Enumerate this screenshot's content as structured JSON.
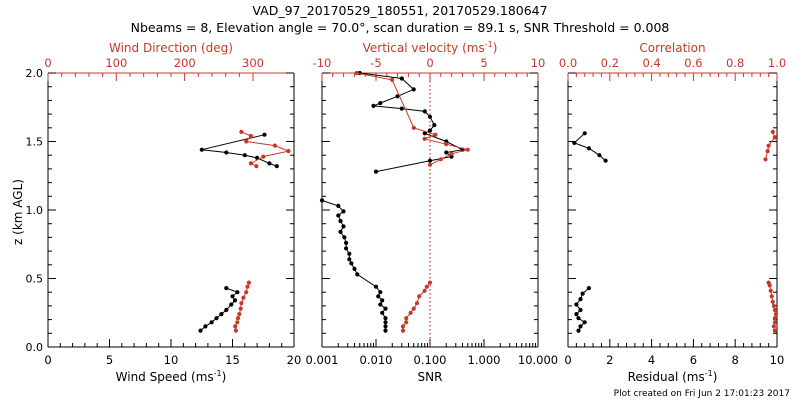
{
  "header": {
    "title": "VAD_97_20170529_180551, 20170529.180647",
    "subtitle": "Nbeams = 8, Elevation angle = 70.0°, scan duration = 89.1 s, SNR Threshold = 0.008"
  },
  "footer": {
    "note": "Plot created on Fri Jun  2 17:01:23 2017"
  },
  "colors": {
    "primary": "#000000",
    "secondary": "#c8382a"
  },
  "chart_data": [
    {
      "type": "line",
      "panel": "wind",
      "ylabel": "z (km AGL)",
      "ylim": [
        0,
        2
      ],
      "yticks": [
        "0.0",
        "0.5",
        "1.0",
        "1.5",
        "2.0"
      ],
      "bottom_axis": {
        "label": "Wind Speed (ms",
        "sup": "-1",
        "tail": ")",
        "lim": [
          0,
          20
        ],
        "ticks": [
          "0",
          "5",
          "10",
          "15",
          "20"
        ],
        "scale": "linear"
      },
      "top_axis": {
        "label": "Wind Direction (deg)",
        "lim": [
          0,
          360
        ],
        "ticks": [
          "0",
          "100",
          "200",
          "300"
        ],
        "tick_values": [
          0,
          100,
          200,
          300
        ],
        "scale": "linear"
      },
      "series": [
        {
          "axis": "bottom",
          "color": "#000000",
          "segments": [
            [
              [
                17.6,
                1.55
              ],
              [
                12.5,
                1.44
              ],
              [
                14.5,
                1.42
              ],
              [
                16.0,
                1.4
              ],
              [
                17.0,
                1.38
              ],
              [
                18.0,
                1.34
              ],
              [
                18.6,
                1.32
              ]
            ],
            [
              [
                12.4,
                0.12
              ],
              [
                12.8,
                0.15
              ],
              [
                13.3,
                0.18
              ],
              [
                13.7,
                0.21
              ],
              [
                14.1,
                0.24
              ],
              [
                14.5,
                0.27
              ],
              [
                14.9,
                0.31
              ],
              [
                15.2,
                0.34
              ],
              [
                15.0,
                0.37
              ],
              [
                15.4,
                0.4
              ],
              [
                14.5,
                0.43
              ]
            ]
          ]
        },
        {
          "axis": "top",
          "color": "#c8382a",
          "segments": [
            [
              [
                283,
                1.57
              ],
              [
                297,
                1.54
              ],
              [
                290,
                1.5
              ],
              [
                332,
                1.47
              ],
              [
                352,
                1.43
              ],
              [
                315,
                1.39
              ],
              [
                297,
                1.34
              ],
              [
                305,
                1.32
              ]
            ],
            [
              [
                275,
                0.12
              ],
              [
                274,
                0.15
              ],
              [
                277,
                0.18
              ],
              [
                278,
                0.21
              ],
              [
                280,
                0.24
              ],
              [
                282,
                0.28
              ],
              [
                283,
                0.32
              ],
              [
                286,
                0.36
              ],
              [
                290,
                0.4
              ],
              [
                292,
                0.44
              ],
              [
                294,
                0.47
              ]
            ]
          ]
        }
      ]
    },
    {
      "type": "line",
      "panel": "snr",
      "ylim": [
        0,
        2
      ],
      "bottom_axis": {
        "label": "SNR",
        "lim": [
          0.001,
          10
        ],
        "ticks": [
          "0.001",
          "0.010",
          "0.100",
          "1.000",
          "10.000"
        ],
        "tick_values": [
          0.001,
          0.01,
          0.1,
          1,
          10
        ],
        "scale": "log"
      },
      "top_axis": {
        "label": "Vertical velocity (ms",
        "sup": "-1",
        "tail": ")",
        "lim": [
          -10,
          10
        ],
        "ticks": [
          "-10",
          "-5",
          "0",
          "5",
          "10"
        ],
        "tick_values": [
          -10,
          -5,
          0,
          5,
          10
        ],
        "scale": "linear",
        "zero_line": true
      },
      "series": [
        {
          "axis": "bottom",
          "color": "#000000",
          "segments": [
            [
              [
                0.005,
                2.0
              ],
              [
                0.03,
                1.96
              ],
              [
                0.05,
                1.88
              ],
              [
                0.025,
                1.83
              ],
              [
                0.012,
                1.78
              ],
              [
                0.009,
                1.76
              ],
              [
                0.03,
                1.74
              ],
              [
                0.08,
                1.72
              ],
              [
                0.1,
                1.68
              ],
              [
                0.12,
                1.62
              ],
              [
                0.1,
                1.58
              ],
              [
                0.08,
                1.56
              ],
              [
                0.2,
                1.5
              ],
              [
                0.4,
                1.44
              ],
              [
                0.2,
                1.42
              ],
              [
                0.25,
                1.39
              ],
              [
                0.1,
                1.36
              ],
              [
                0.01,
                1.28
              ]
            ],
            [
              [
                0.001,
                1.07
              ],
              [
                0.002,
                1.03
              ],
              [
                0.0025,
                0.99
              ],
              [
                0.002,
                0.96
              ],
              [
                0.0022,
                0.92
              ],
              [
                0.0025,
                0.88
              ],
              [
                0.0022,
                0.84
              ],
              [
                0.0026,
                0.8
              ],
              [
                0.0028,
                0.76
              ],
              [
                0.0028,
                0.72
              ],
              [
                0.0032,
                0.68
              ],
              [
                0.0032,
                0.64
              ],
              [
                0.0035,
                0.61
              ],
              [
                0.004,
                0.57
              ],
              [
                0.0045,
                0.53
              ],
              [
                0.01,
                0.44
              ],
              [
                0.012,
                0.4
              ],
              [
                0.011,
                0.37
              ],
              [
                0.013,
                0.34
              ],
              [
                0.012,
                0.31
              ],
              [
                0.015,
                0.28
              ],
              [
                0.013,
                0.25
              ],
              [
                0.015,
                0.21
              ],
              [
                0.015,
                0.18
              ],
              [
                0.015,
                0.15
              ],
              [
                0.015,
                0.12
              ]
            ]
          ]
        },
        {
          "axis": "top",
          "color": "#c8382a",
          "segments": [
            [
              [
                -6.8,
                2.0
              ],
              [
                -3.5,
                1.95
              ],
              [
                -1.5,
                1.6
              ],
              [
                0.5,
                1.55
              ],
              [
                -0.5,
                1.52
              ],
              [
                1.5,
                1.48
              ],
              [
                3.5,
                1.44
              ],
              [
                2.0,
                1.41
              ],
              [
                1.0,
                1.37
              ],
              [
                0.0,
                1.33
              ]
            ],
            [
              [
                -2.5,
                0.12
              ],
              [
                -2.5,
                0.15
              ],
              [
                -2.2,
                0.18
              ],
              [
                -2.2,
                0.21
              ],
              [
                -1.8,
                0.25
              ],
              [
                -1.5,
                0.28
              ],
              [
                -1.2,
                0.32
              ],
              [
                -1.0,
                0.37
              ],
              [
                -0.5,
                0.41
              ],
              [
                -0.3,
                0.44
              ],
              [
                0.0,
                0.47
              ]
            ]
          ]
        }
      ]
    },
    {
      "type": "line",
      "panel": "residual",
      "ylim": [
        0,
        2
      ],
      "bottom_axis": {
        "label": "Residual (ms",
        "sup": "-1",
        "tail": ")",
        "lim": [
          0,
          10
        ],
        "ticks": [
          "0",
          "2",
          "4",
          "6",
          "8",
          "10"
        ],
        "scale": "linear"
      },
      "top_axis": {
        "label": "Correlation",
        "lim": [
          0,
          1
        ],
        "ticks": [
          "0.0",
          "0.2",
          "0.4",
          "0.6",
          "0.8",
          "1.0"
        ],
        "tick_values": [
          0,
          0.2,
          0.4,
          0.6,
          0.8,
          1.0
        ],
        "scale": "linear"
      },
      "series": [
        {
          "axis": "bottom",
          "color": "#000000",
          "segments": [
            [
              [
                0.8,
                1.56
              ],
              [
                0.3,
                1.49
              ],
              [
                1.0,
                1.45
              ],
              [
                1.5,
                1.4
              ],
              [
                1.8,
                1.36
              ]
            ],
            [
              [
                0.5,
                0.12
              ],
              [
                0.6,
                0.15
              ],
              [
                0.8,
                0.18
              ],
              [
                0.5,
                0.21
              ],
              [
                0.4,
                0.24
              ],
              [
                0.6,
                0.27
              ],
              [
                0.4,
                0.31
              ],
              [
                0.6,
                0.35
              ],
              [
                0.7,
                0.39
              ],
              [
                1.0,
                0.43
              ]
            ]
          ]
        },
        {
          "axis": "top",
          "color": "#c8382a",
          "segments": [
            [
              [
                0.98,
                1.57
              ],
              [
                0.99,
                1.53
              ],
              [
                0.96,
                1.47
              ],
              [
                0.955,
                1.43
              ],
              [
                0.945,
                1.37
              ]
            ],
            [
              [
                0.99,
                0.12
              ],
              [
                0.985,
                0.15
              ],
              [
                0.99,
                0.18
              ],
              [
                0.99,
                0.21
              ],
              [
                0.995,
                0.24
              ],
              [
                0.99,
                0.27
              ],
              [
                0.985,
                0.3
              ],
              [
                0.98,
                0.33
              ],
              [
                0.975,
                0.37
              ],
              [
                0.97,
                0.41
              ],
              [
                0.965,
                0.45
              ],
              [
                0.96,
                0.47
              ]
            ]
          ]
        }
      ]
    }
  ]
}
